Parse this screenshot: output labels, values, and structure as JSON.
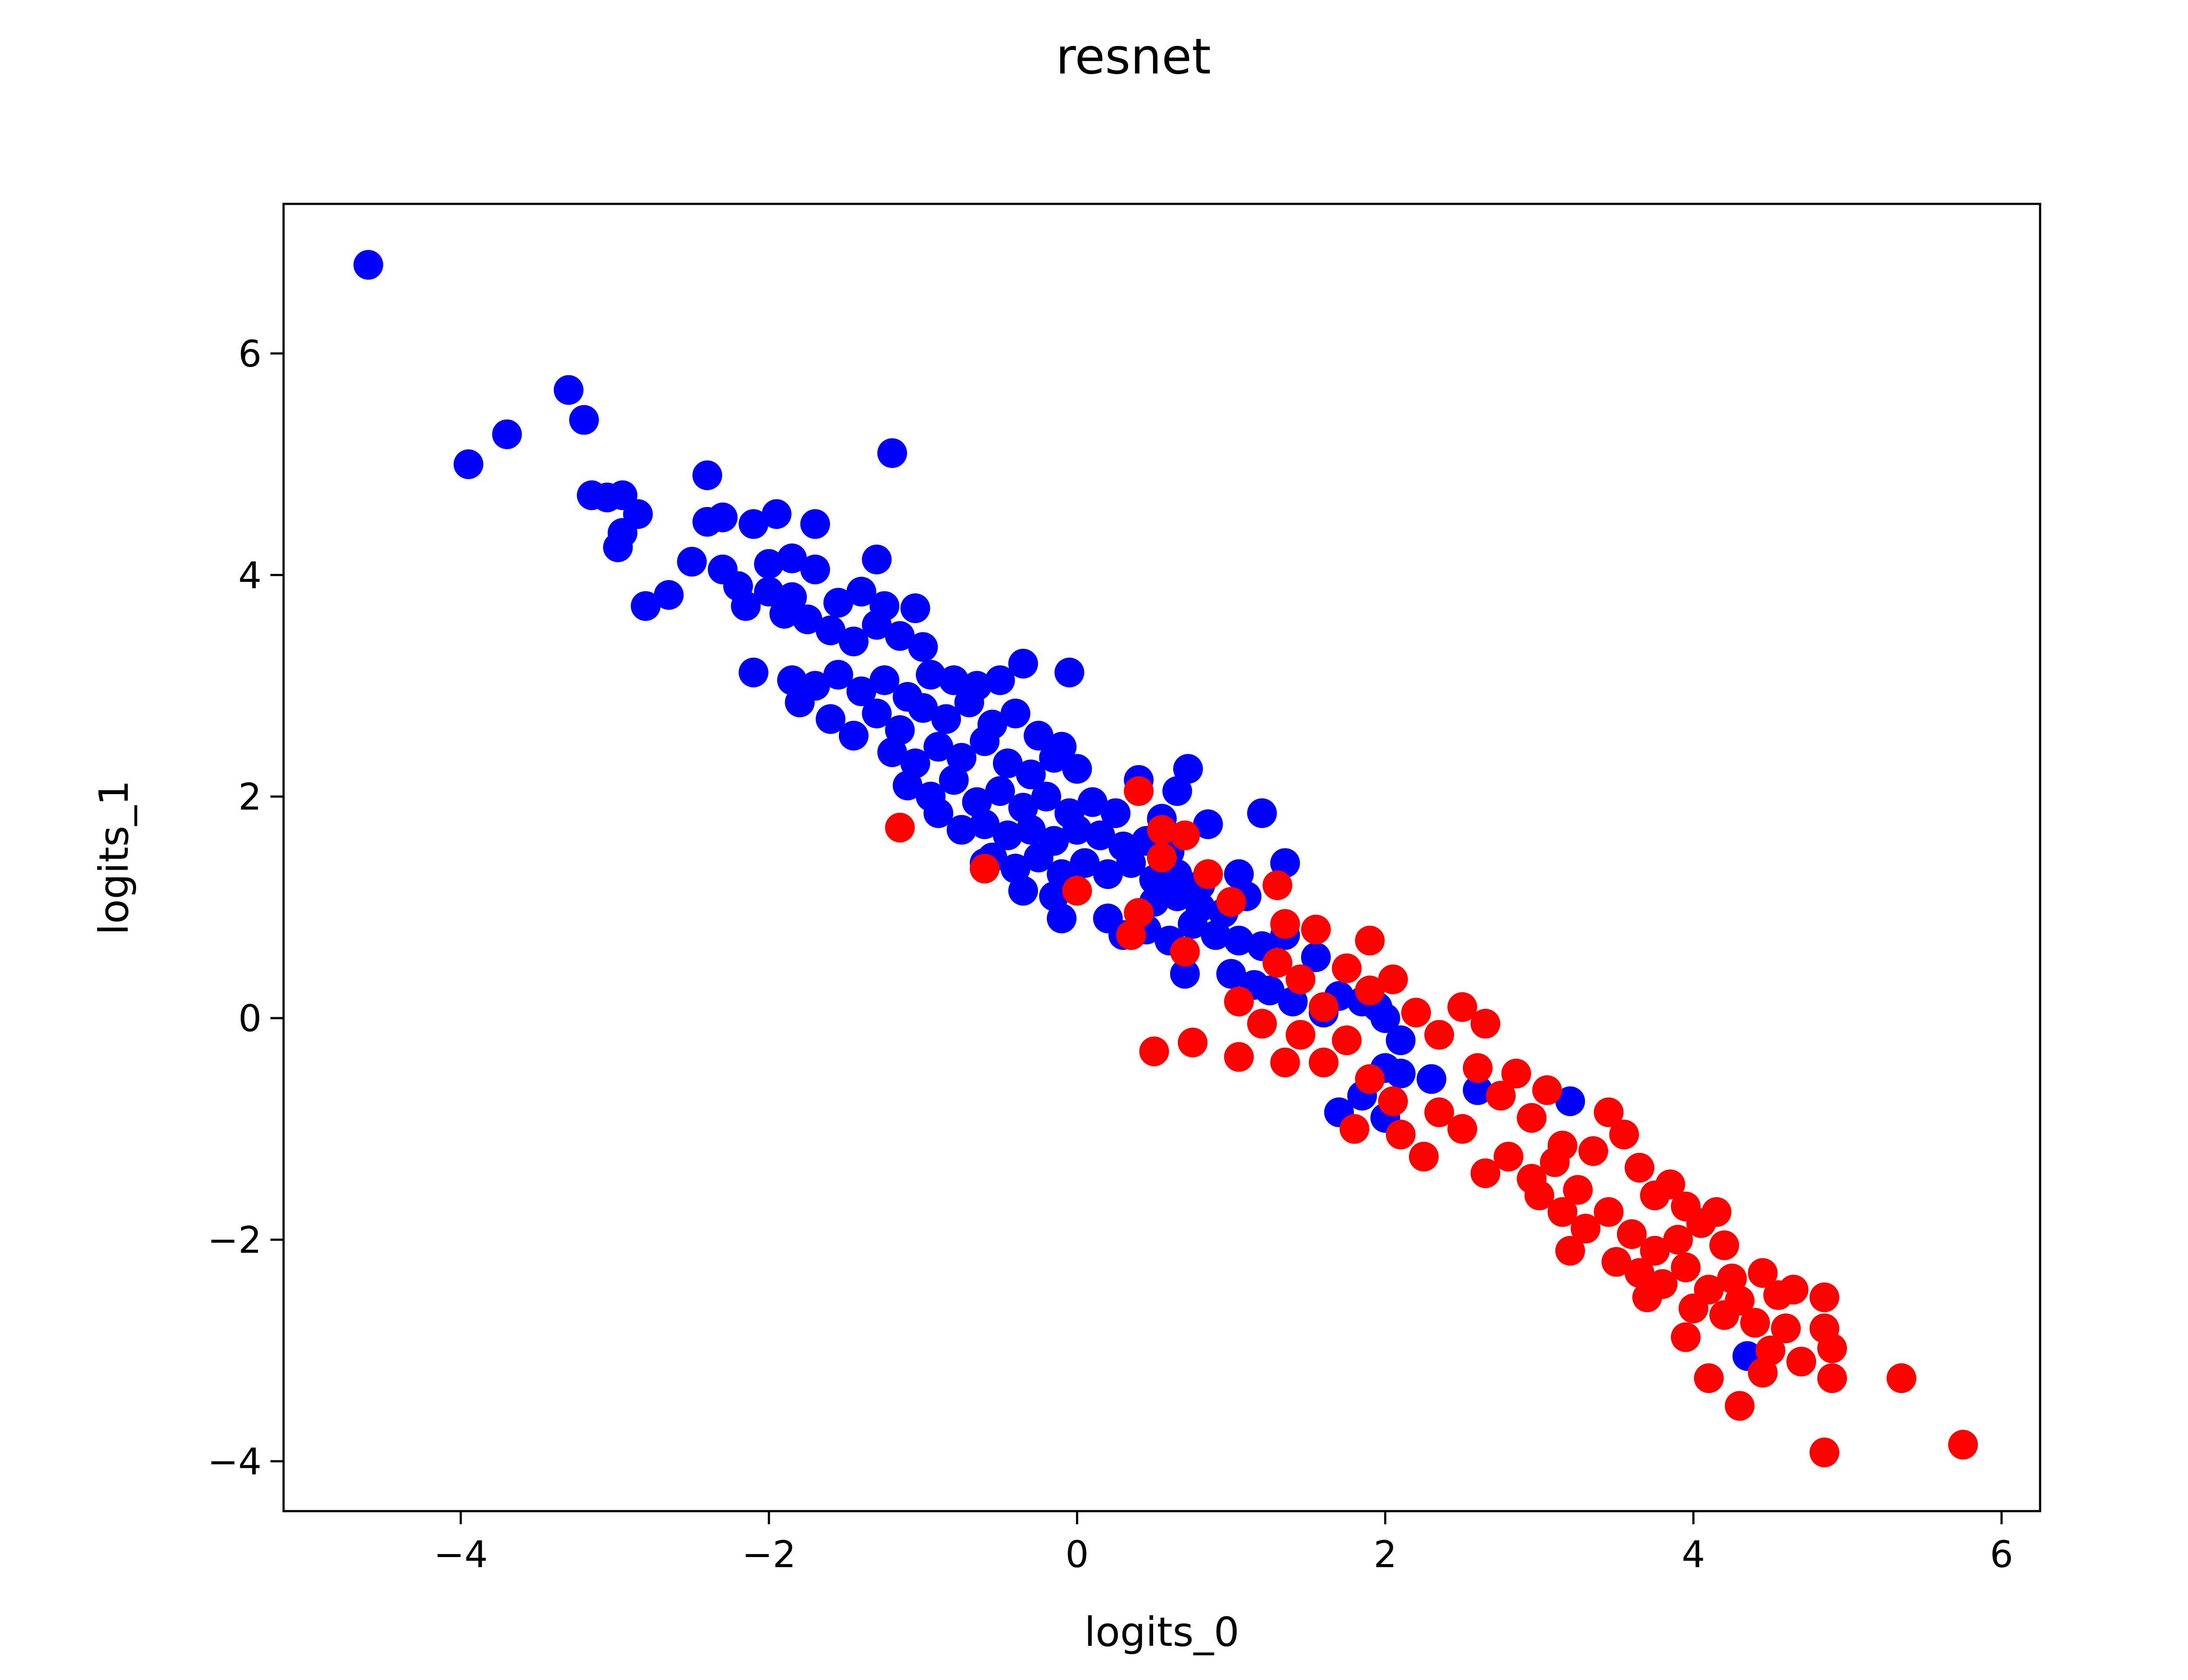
{
  "chart_data": {
    "type": "scatter",
    "title": "resnet",
    "xlabel": "logits_0",
    "ylabel": "logits_1",
    "xlim": [
      -5.15,
      6.25
    ],
    "ylim": [
      -4.45,
      7.35
    ],
    "x_ticks": [
      {
        "value": -4,
        "label": "−4"
      },
      {
        "value": -2,
        "label": "−2"
      },
      {
        "value": 0,
        "label": "0"
      },
      {
        "value": 2,
        "label": "2"
      },
      {
        "value": 4,
        "label": "4"
      },
      {
        "value": 6,
        "label": "6"
      }
    ],
    "y_ticks": [
      {
        "value": -4,
        "label": "−4"
      },
      {
        "value": -2,
        "label": "−2"
      },
      {
        "value": 0,
        "label": "0"
      },
      {
        "value": 2,
        "label": "2"
      },
      {
        "value": 4,
        "label": "4"
      },
      {
        "value": 6,
        "label": "6"
      }
    ],
    "grid": false,
    "series": [
      {
        "color": "#0000ff",
        "points": [
          [
            -4.6,
            6.8
          ],
          [
            -3.3,
            5.67
          ],
          [
            -3.7,
            5.27
          ],
          [
            -3.2,
            5.4
          ],
          [
            -3.95,
            5.0
          ],
          [
            -1.2,
            5.1
          ],
          [
            -3.15,
            4.72
          ],
          [
            -3.05,
            4.7
          ],
          [
            -2.95,
            4.72
          ],
          [
            -2.85,
            4.55
          ],
          [
            -2.95,
            4.38
          ],
          [
            -2.98,
            4.25
          ],
          [
            -2.4,
            4.9
          ],
          [
            -2.4,
            4.48
          ],
          [
            -2.3,
            4.52
          ],
          [
            -2.1,
            4.46
          ],
          [
            -1.95,
            4.55
          ],
          [
            -1.7,
            4.46
          ],
          [
            -2.5,
            4.12
          ],
          [
            -2.3,
            4.05
          ],
          [
            -2.0,
            4.1
          ],
          [
            -1.85,
            4.15
          ],
          [
            -1.7,
            4.05
          ],
          [
            -1.3,
            4.14
          ],
          [
            -2.8,
            3.72
          ],
          [
            -2.65,
            3.82
          ],
          [
            -2.2,
            3.9
          ],
          [
            -2.0,
            3.85
          ],
          [
            -1.85,
            3.8
          ],
          [
            -1.55,
            3.75
          ],
          [
            -1.4,
            3.85
          ],
          [
            -1.25,
            3.72
          ],
          [
            -1.05,
            3.7
          ],
          [
            -2.1,
            3.12
          ],
          [
            -2.15,
            3.72
          ],
          [
            -1.9,
            3.65
          ],
          [
            -1.75,
            3.6
          ],
          [
            -1.6,
            3.5
          ],
          [
            -1.45,
            3.4
          ],
          [
            -1.3,
            3.55
          ],
          [
            -1.15,
            3.45
          ],
          [
            -1.0,
            3.35
          ],
          [
            -1.85,
            3.05
          ],
          [
            -1.7,
            3.0
          ],
          [
            -1.55,
            3.1
          ],
          [
            -1.4,
            2.95
          ],
          [
            -1.25,
            3.05
          ],
          [
            -1.1,
            2.9
          ],
          [
            -0.95,
            3.1
          ],
          [
            -0.8,
            3.05
          ],
          [
            -0.65,
            3.0
          ],
          [
            -0.5,
            3.05
          ],
          [
            -0.35,
            3.2
          ],
          [
            -0.05,
            3.12
          ],
          [
            -1.8,
            2.85
          ],
          [
            -1.6,
            2.7
          ],
          [
            -1.45,
            2.55
          ],
          [
            -1.3,
            2.75
          ],
          [
            -1.15,
            2.6
          ],
          [
            -1.0,
            2.8
          ],
          [
            -0.85,
            2.7
          ],
          [
            -0.7,
            2.85
          ],
          [
            -0.55,
            2.65
          ],
          [
            -0.4,
            2.75
          ],
          [
            -0.25,
            2.55
          ],
          [
            -0.1,
            2.45
          ],
          [
            -1.2,
            2.4
          ],
          [
            -1.05,
            2.3
          ],
          [
            -0.9,
            2.45
          ],
          [
            -0.75,
            2.35
          ],
          [
            -0.6,
            2.5
          ],
          [
            -0.45,
            2.3
          ],
          [
            -0.3,
            2.2
          ],
          [
            -0.15,
            2.35
          ],
          [
            0.0,
            2.25
          ],
          [
            -1.1,
            2.1
          ],
          [
            -0.95,
            2.0
          ],
          [
            -0.8,
            2.15
          ],
          [
            -0.65,
            1.95
          ],
          [
            -0.5,
            2.05
          ],
          [
            -0.35,
            1.9
          ],
          [
            -0.2,
            2.0
          ],
          [
            -0.05,
            1.85
          ],
          [
            0.1,
            1.95
          ],
          [
            0.25,
            1.85
          ],
          [
            0.4,
            2.15
          ],
          [
            0.55,
            1.8
          ],
          [
            0.65,
            2.05
          ],
          [
            0.72,
            2.25
          ],
          [
            0.85,
            1.75
          ],
          [
            -0.9,
            1.85
          ],
          [
            -0.75,
            1.7
          ],
          [
            -0.6,
            1.75
          ],
          [
            -0.45,
            1.65
          ],
          [
            -0.3,
            1.7
          ],
          [
            -0.15,
            1.6
          ],
          [
            0.0,
            1.7
          ],
          [
            0.15,
            1.65
          ],
          [
            0.3,
            1.55
          ],
          [
            0.45,
            1.6
          ],
          [
            0.6,
            1.5
          ],
          [
            -0.55,
            1.45
          ],
          [
            -0.4,
            1.35
          ],
          [
            -0.25,
            1.45
          ],
          [
            -0.1,
            1.3
          ],
          [
            0.05,
            1.4
          ],
          [
            0.2,
            1.3
          ],
          [
            0.35,
            1.4
          ],
          [
            0.5,
            1.25
          ],
          [
            0.65,
            1.3
          ],
          [
            0.8,
            1.2
          ],
          [
            -0.6,
            1.4
          ],
          [
            -0.35,
            1.15
          ],
          [
            -0.15,
            1.1
          ],
          [
            0.5,
            1.05
          ],
          [
            0.65,
            1.1
          ],
          [
            0.8,
            1.0
          ],
          [
            0.95,
            0.95
          ],
          [
            1.1,
            1.1
          ],
          [
            1.05,
            1.3
          ],
          [
            -0.1,
            0.9
          ],
          [
            0.2,
            0.9
          ],
          [
            0.3,
            0.75
          ],
          [
            0.45,
            0.8
          ],
          [
            0.6,
            0.7
          ],
          [
            0.75,
            0.85
          ],
          [
            0.9,
            0.75
          ],
          [
            1.05,
            0.7
          ],
          [
            1.2,
            0.65
          ],
          [
            1.35,
            0.75
          ],
          [
            1.55,
            0.55
          ],
          [
            1.2,
            1.85
          ],
          [
            1.35,
            1.4
          ],
          [
            0.7,
            0.4
          ],
          [
            1.0,
            0.4
          ],
          [
            1.15,
            0.3
          ],
          [
            1.25,
            0.25
          ],
          [
            1.4,
            0.15
          ],
          [
            1.6,
            0.05
          ],
          [
            1.7,
            0.2
          ],
          [
            1.85,
            0.15
          ],
          [
            1.95,
            0.1
          ],
          [
            2.0,
            0.0
          ],
          [
            2.1,
            -0.2
          ],
          [
            2.0,
            -0.45
          ],
          [
            1.85,
            -0.7
          ],
          [
            1.7,
            -0.85
          ],
          [
            2.0,
            -0.9
          ],
          [
            2.1,
            -0.5
          ],
          [
            2.3,
            -0.55
          ],
          [
            2.6,
            -0.65
          ],
          [
            3.2,
            -0.75
          ],
          [
            4.35,
            -3.05
          ]
        ]
      },
      {
        "color": "#ff0000",
        "points": [
          [
            -1.15,
            1.72
          ],
          [
            -0.6,
            1.35
          ],
          [
            0.0,
            1.15
          ],
          [
            0.35,
            0.75
          ],
          [
            0.4,
            0.95
          ],
          [
            0.4,
            2.05
          ],
          [
            0.55,
            1.7
          ],
          [
            0.7,
            0.6
          ],
          [
            0.55,
            1.45
          ],
          [
            0.7,
            1.65
          ],
          [
            0.85,
            1.3
          ],
          [
            1.0,
            1.05
          ],
          [
            1.3,
            1.2
          ],
          [
            1.35,
            0.85
          ],
          [
            1.55,
            0.8
          ],
          [
            1.9,
            0.7
          ],
          [
            0.5,
            -0.3
          ],
          [
            0.75,
            -0.22
          ],
          [
            1.05,
            -0.35
          ],
          [
            1.35,
            -0.4
          ],
          [
            1.3,
            0.5
          ],
          [
            1.45,
            0.35
          ],
          [
            1.6,
            0.1
          ],
          [
            1.75,
            0.45
          ],
          [
            1.9,
            0.25
          ],
          [
            2.05,
            0.35
          ],
          [
            2.2,
            0.05
          ],
          [
            2.35,
            -0.15
          ],
          [
            2.5,
            0.1
          ],
          [
            2.65,
            -0.05
          ],
          [
            1.05,
            0.15
          ],
          [
            1.2,
            -0.05
          ],
          [
            1.45,
            -0.15
          ],
          [
            1.6,
            -0.4
          ],
          [
            1.75,
            -0.2
          ],
          [
            1.9,
            -0.55
          ],
          [
            1.8,
            -1.0
          ],
          [
            2.05,
            -0.75
          ],
          [
            2.1,
            -1.05
          ],
          [
            2.25,
            -1.25
          ],
          [
            2.35,
            -0.85
          ],
          [
            2.5,
            -1.0
          ],
          [
            2.6,
            -0.45
          ],
          [
            2.75,
            -0.7
          ],
          [
            2.85,
            -0.5
          ],
          [
            2.95,
            -0.9
          ],
          [
            3.05,
            -0.65
          ],
          [
            3.15,
            -1.15
          ],
          [
            2.65,
            -1.4
          ],
          [
            2.8,
            -1.25
          ],
          [
            2.95,
            -1.45
          ],
          [
            3.1,
            -1.3
          ],
          [
            3.25,
            -1.55
          ],
          [
            3.35,
            -1.2
          ],
          [
            3.45,
            -0.85
          ],
          [
            3.55,
            -1.05
          ],
          [
            3.65,
            -1.35
          ],
          [
            3.75,
            -1.6
          ],
          [
            3.85,
            -1.5
          ],
          [
            3.95,
            -1.7
          ],
          [
            3.0,
            -1.6
          ],
          [
            3.15,
            -1.75
          ],
          [
            3.3,
            -1.9
          ],
          [
            3.45,
            -1.75
          ],
          [
            3.6,
            -1.95
          ],
          [
            3.75,
            -2.1
          ],
          [
            3.9,
            -2.0
          ],
          [
            4.05,
            -1.85
          ],
          [
            4.15,
            -1.75
          ],
          [
            4.2,
            -2.05
          ],
          [
            3.2,
            -2.1
          ],
          [
            3.5,
            -2.2
          ],
          [
            3.65,
            -2.3
          ],
          [
            3.8,
            -2.4
          ],
          [
            3.95,
            -2.25
          ],
          [
            4.1,
            -2.45
          ],
          [
            4.25,
            -2.35
          ],
          [
            4.3,
            -2.55
          ],
          [
            4.45,
            -2.3
          ],
          [
            4.55,
            -2.5
          ],
          [
            4.65,
            -2.45
          ],
          [
            4.85,
            -2.52
          ],
          [
            3.7,
            -2.52
          ],
          [
            4.0,
            -2.62
          ],
          [
            4.2,
            -2.68
          ],
          [
            4.4,
            -2.75
          ],
          [
            4.6,
            -2.8
          ],
          [
            4.85,
            -2.8
          ],
          [
            4.9,
            -2.98
          ],
          [
            4.5,
            -3.0
          ],
          [
            3.95,
            -2.88
          ],
          [
            4.45,
            -3.2
          ],
          [
            4.7,
            -3.1
          ],
          [
            4.9,
            -3.25
          ],
          [
            4.1,
            -3.25
          ],
          [
            4.3,
            -3.5
          ],
          [
            5.35,
            -3.25
          ],
          [
            4.85,
            -3.92
          ],
          [
            5.75,
            -3.85
          ]
        ]
      }
    ]
  }
}
